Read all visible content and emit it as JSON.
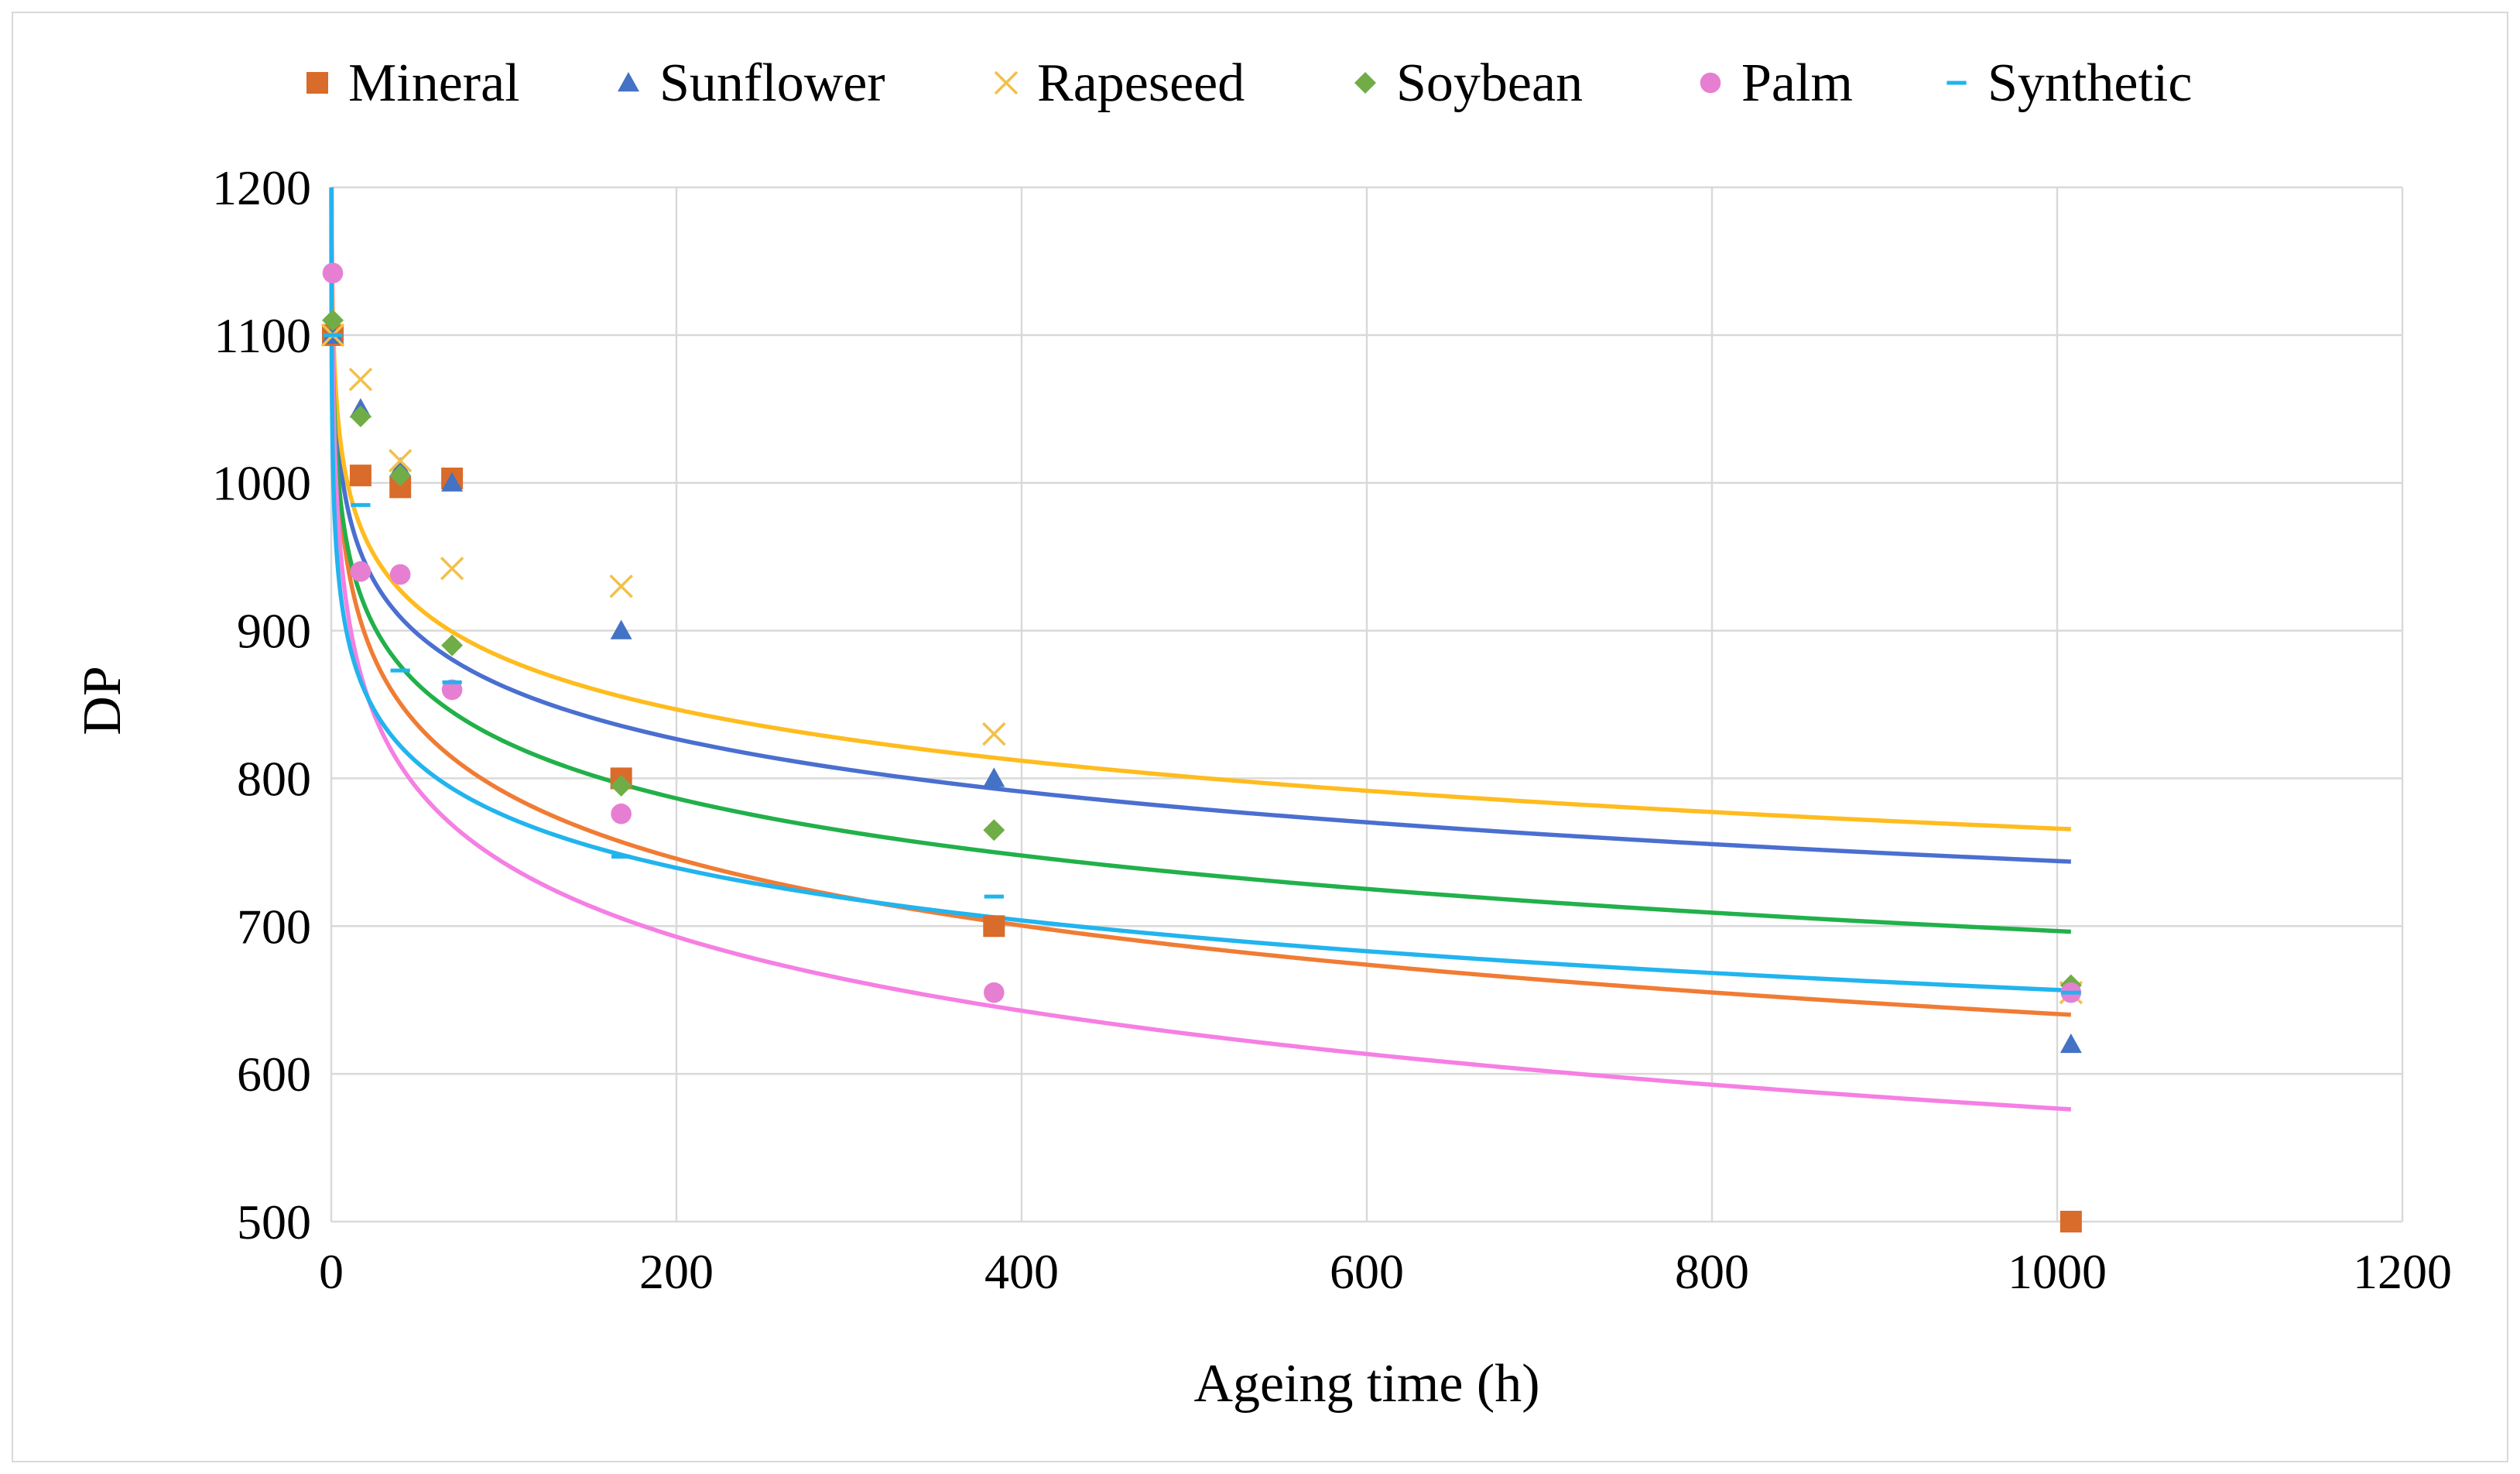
{
  "chart_data": {
    "type": "scatter",
    "title": "",
    "xlabel": "Ageing time (h)",
    "ylabel": "DP",
    "xlim": [
      0,
      1200
    ],
    "ylim": [
      500,
      1200
    ],
    "xticks": [
      0,
      200,
      400,
      600,
      800,
      1000,
      1200
    ],
    "yticks": [
      500,
      600,
      700,
      800,
      900,
      1000,
      1100,
      1200
    ],
    "grid": true,
    "legend_position": "top",
    "trendline_type": "logarithmic",
    "series": [
      {
        "name": "Mineral",
        "marker": "square",
        "color": "#d96b2b",
        "trend_color": "#f07c34",
        "x": [
          0,
          17,
          40,
          70,
          168,
          384,
          1008
        ],
        "y": [
          1100,
          1005,
          997,
          1003,
          800,
          700,
          500
        ],
        "trend": {
          "a": 1091.6,
          "b": -65.3
        }
      },
      {
        "name": "Sunflower",
        "marker": "triangle",
        "color": "#4472c4",
        "trend_color": "#4a6fd0",
        "x": [
          0,
          17,
          40,
          70,
          168,
          384,
          1008
        ],
        "y": [
          1100,
          1050,
          1010,
          1000,
          900,
          800,
          620
        ],
        "trend": {
          "a": 1098.4,
          "b": -51.3
        }
      },
      {
        "name": "Rapeseed",
        "marker": "x",
        "color": "#f2c04a",
        "trend_color": "#ffbc1f",
        "x": [
          0,
          17,
          40,
          70,
          168,
          384,
          1008
        ],
        "y": [
          1100,
          1070,
          1015,
          942,
          930,
          830,
          655
        ],
        "trend": {
          "a": 1112.1,
          "b": -50.1
        }
      },
      {
        "name": "Soybean",
        "marker": "diamond",
        "color": "#70ad47",
        "trend_color": "#22b04a",
        "x": [
          0,
          17,
          40,
          70,
          168,
          384,
          1008
        ],
        "y": [
          1110,
          1045,
          1005,
          890,
          795,
          765,
          660
        ],
        "trend": {
          "a": 1082.1,
          "b": -55.8
        }
      },
      {
        "name": "Palm",
        "marker": "circle",
        "color": "#e67fd2",
        "trend_color": "#f57fe3",
        "x": [
          0,
          17,
          40,
          70,
          168,
          384,
          1008
        ],
        "y": [
          1142,
          940,
          938,
          860,
          776,
          655,
          655
        ],
        "trend": {
          "a": 1075.3,
          "b": -72.2
        }
      },
      {
        "name": "Synthetic",
        "marker": "dash",
        "color": "#1fb4ee",
        "trend_color": "#22b4ee",
        "x": [
          0,
          17,
          40,
          70,
          168,
          384,
          1008
        ],
        "y": [
          1100,
          985,
          873,
          865,
          747,
          720,
          655
        ],
        "trend": {
          "a": 1011.2,
          "b": -51.3
        }
      }
    ]
  }
}
